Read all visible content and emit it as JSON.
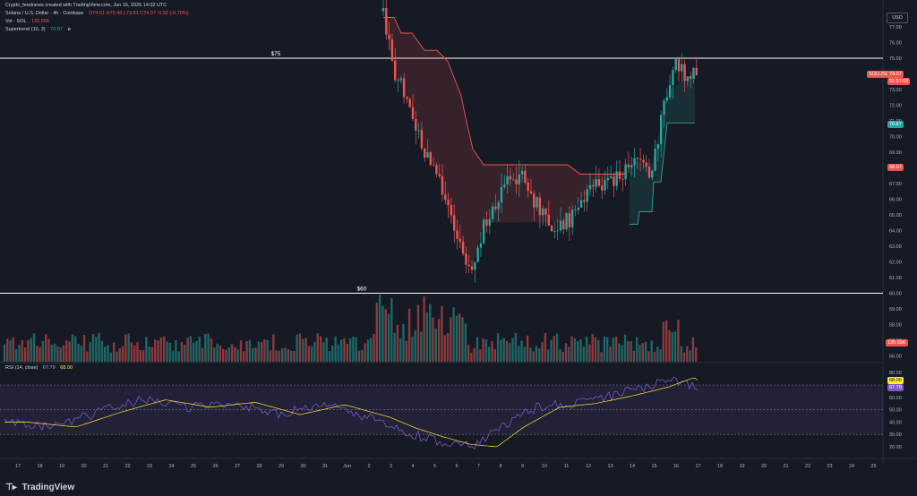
{
  "header": {
    "creator": "Crypto_feednews created with TradingView.com, Jun 16, 2026 14:02 UTC",
    "symbol": "Solana / U.S. Dollar · 4h · Coinbase",
    "ohlc": "O74.61 H75.48 L73.81 C74.07 -0.52 (-0.70%)",
    "volume_label": "Vol · SOL",
    "volume_value": "135.65K",
    "supertrend_label": "Supertrend (10, 3)",
    "supertrend_value": "70.87",
    "supertrend_flag": "ø"
  },
  "rsi": {
    "label": "RSI (14, close)",
    "value": "67.79",
    "ma_value": "68.00",
    "scale": [
      "80.00",
      "70.00",
      "60.00",
      "50.00",
      "40.00",
      "30.00",
      "20.00"
    ],
    "tags": [
      "68.00",
      "67.79"
    ]
  },
  "currency_button": "USD",
  "price_scale": [
    "77.00",
    "76.00",
    "75.00",
    "74.00",
    "73.00",
    "72.00",
    "71.00",
    "70.00",
    "69.00",
    "68.00",
    "67.00",
    "66.00",
    "65.00",
    "64.00",
    "63.00",
    "62.00",
    "61.00",
    "60.00",
    "59.00",
    "58.00",
    "57.00",
    "56.00"
  ],
  "price_tags": {
    "symbol": "SOLUSD",
    "last": "74.07",
    "countdown": "01:57:09",
    "supertrend": "70.87",
    "other": "68.07",
    "volume": "135.65K"
  },
  "levels": [
    {
      "label": "$75",
      "price": 75.0
    },
    {
      "label": "$60",
      "price": 60.0
    }
  ],
  "x_axis": [
    "17",
    "18",
    "19",
    "20",
    "21",
    "22",
    "23",
    "24",
    "25",
    "26",
    "27",
    "28",
    "29",
    "30",
    "31",
    "Jun",
    "2",
    "3",
    "4",
    "5",
    "6",
    "7",
    "8",
    "9",
    "10",
    "11",
    "12",
    "13",
    "14",
    "15",
    "16",
    "17",
    "18",
    "19",
    "20",
    "21",
    "22",
    "23",
    "24",
    "25"
  ],
  "brand": "TradingView",
  "colors": {
    "up": "#26a69a",
    "down": "#ef5350",
    "background": "#161a25",
    "rsi": "#7e57c2"
  }
}
